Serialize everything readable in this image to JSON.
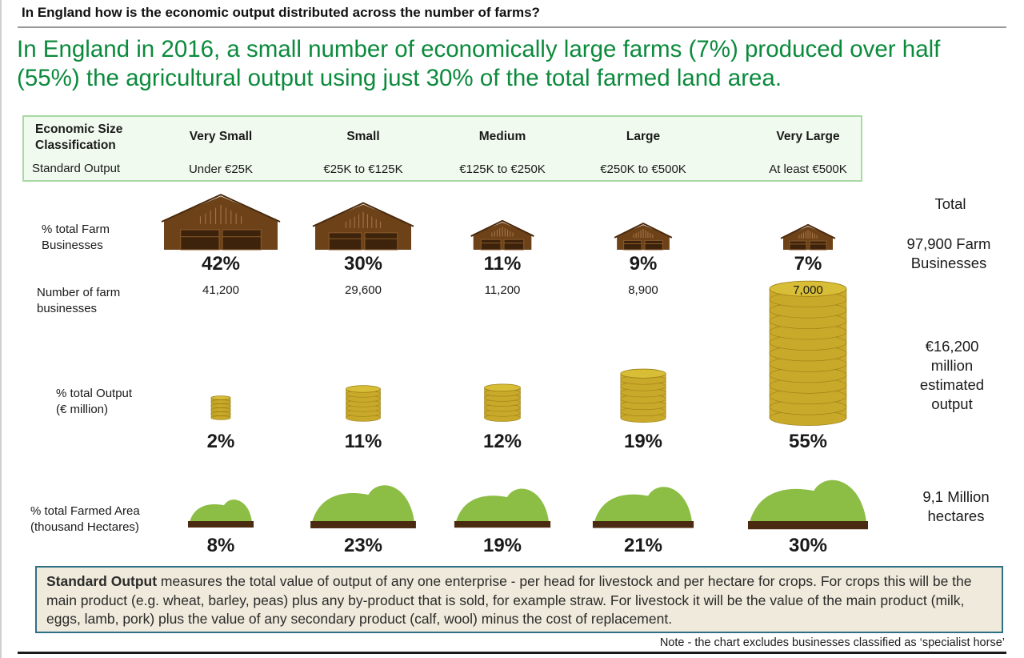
{
  "question": "In England how is the economic output distributed across the number of farms?",
  "headline": "In England in 2016, a small number of economically large farms (7%) produced over half (55%) the agricultural output using just 30% of the total farmed land area.",
  "classification": {
    "header_label": "Economic Size Classification",
    "so_label": "Standard Output"
  },
  "row_labels": {
    "businesses": "% total Farm Businesses",
    "number": "Number of farm businesses",
    "output": "% total Output (€ million)",
    "area": "% total Farmed Area (thousand Hectares)"
  },
  "totals": {
    "header": "Total",
    "businesses": "97,900 Farm Businesses",
    "output": "€16,200 million estimated output",
    "area": "9,1 Million hectares"
  },
  "chart_data": {
    "type": "table",
    "title": "In England how is the economic output distributed across the number of farms?",
    "categories": [
      "Very Small",
      "Small",
      "Medium",
      "Large",
      "Very Large"
    ],
    "standard_output": [
      "Under €25K",
      "€25K to €125K",
      "€125K to €250K",
      "€250K to €500K",
      "At least €500K"
    ],
    "series": [
      {
        "name": "% total Farm Businesses",
        "values": [
          42,
          30,
          11,
          9,
          7
        ],
        "labels": [
          "42%",
          "30%",
          "11%",
          "9%",
          "7%"
        ]
      },
      {
        "name": "Number of farm businesses",
        "values": [
          41200,
          29600,
          11200,
          8900,
          7000
        ],
        "labels": [
          "41,200",
          "29,600",
          "11,200",
          "8,900",
          "7,000"
        ]
      },
      {
        "name": "% total Output (€ million)",
        "values": [
          2,
          11,
          12,
          19,
          55
        ],
        "labels": [
          "2%",
          "11%",
          "12%",
          "19%",
          "55%"
        ]
      },
      {
        "name": "% total Farmed Area (thousand Hectares)",
        "values": [
          8,
          23,
          19,
          21,
          30
        ],
        "labels": [
          "8%",
          "23%",
          "19%",
          "21%",
          "30%"
        ]
      }
    ]
  },
  "note": {
    "bold": "Standard Output",
    "text": " measures the total value of output of any one enterprise - per head for livestock and per hectare for crops. For crops this will be the main product (e.g. wheat, barley, peas) plus any by-product that is sold, for example straw. For livestock it will be the value of the main product (milk, eggs, lamb, pork) plus the value of any secondary product (calf, wool) minus the cost of replacement."
  },
  "footnote": "Note - the chart excludes businesses classified as ‘specialist horse’",
  "colors": {
    "headline": "#0b8a3c",
    "barn": "#6e4218",
    "coin": "#d8bd36",
    "hill": "#8cbd45",
    "soil": "#4a2a10"
  }
}
